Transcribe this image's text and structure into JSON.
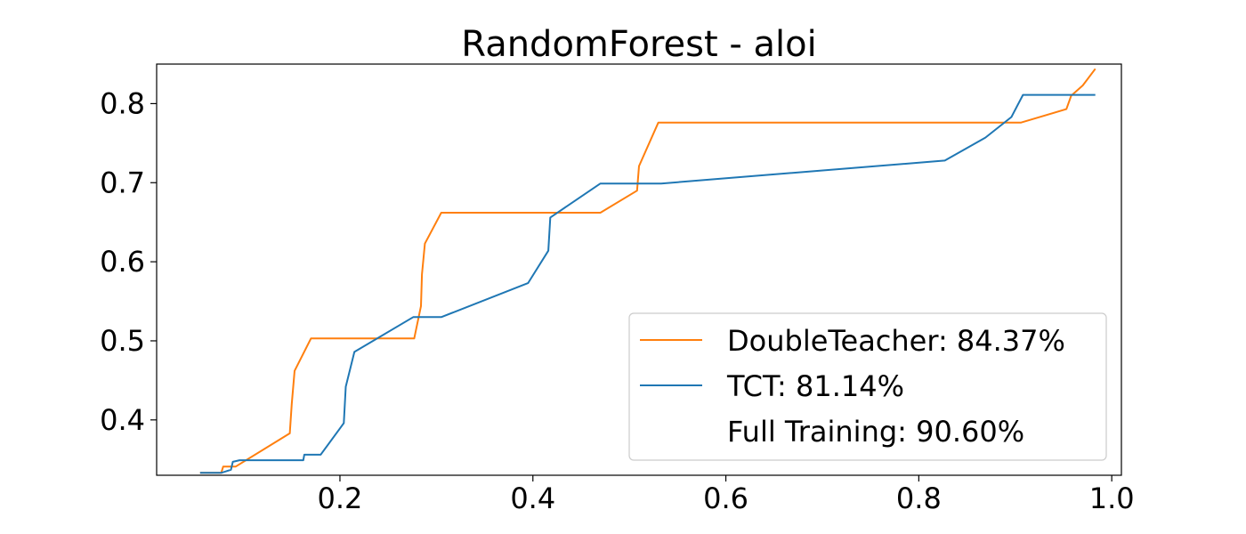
{
  "chart_data": {
    "type": "line",
    "title": "RandomForest - aloi",
    "xlabel": "",
    "ylabel": "",
    "xlim": [
      0.01,
      1.01
    ],
    "ylim": [
      0.33,
      0.85
    ],
    "x_ticks": [
      {
        "value": 0.2,
        "label": "0.2"
      },
      {
        "value": 0.4,
        "label": "0.4"
      },
      {
        "value": 0.6,
        "label": "0.6"
      },
      {
        "value": 0.8,
        "label": "0.8"
      },
      {
        "value": 1.0,
        "label": "1.0"
      }
    ],
    "y_ticks": [
      {
        "value": 0.4,
        "label": "0.4"
      },
      {
        "value": 0.5,
        "label": "0.5"
      },
      {
        "value": 0.6,
        "label": "0.6"
      },
      {
        "value": 0.7,
        "label": "0.7"
      },
      {
        "value": 0.8,
        "label": "0.8"
      }
    ],
    "grid": false,
    "legend_position": "lower-right",
    "series": [
      {
        "name": "DoubleTeacher: 84.37%",
        "color": "#ff7f0e",
        "points": [
          [
            0.055,
            0.333
          ],
          [
            0.077,
            0.333
          ],
          [
            0.079,
            0.341
          ],
          [
            0.092,
            0.341
          ],
          [
            0.148,
            0.383
          ],
          [
            0.15,
            0.42
          ],
          [
            0.153,
            0.462
          ],
          [
            0.17,
            0.503
          ],
          [
            0.277,
            0.503
          ],
          [
            0.284,
            0.544
          ],
          [
            0.285,
            0.584
          ],
          [
            0.288,
            0.623
          ],
          [
            0.305,
            0.662
          ],
          [
            0.47,
            0.662
          ],
          [
            0.508,
            0.69
          ],
          [
            0.51,
            0.721
          ],
          [
            0.53,
            0.776
          ],
          [
            0.906,
            0.776
          ],
          [
            0.953,
            0.793
          ],
          [
            0.958,
            0.81
          ],
          [
            0.97,
            0.823
          ],
          [
            0.983,
            0.844
          ]
        ]
      },
      {
        "name": "TCT: 81.14%",
        "color": "#1f77b4",
        "points": [
          [
            0.055,
            0.333
          ],
          [
            0.077,
            0.333
          ],
          [
            0.087,
            0.337
          ],
          [
            0.089,
            0.347
          ],
          [
            0.096,
            0.349
          ],
          [
            0.162,
            0.349
          ],
          [
            0.163,
            0.356
          ],
          [
            0.18,
            0.356
          ],
          [
            0.204,
            0.396
          ],
          [
            0.206,
            0.442
          ],
          [
            0.215,
            0.486
          ],
          [
            0.276,
            0.53
          ],
          [
            0.305,
            0.53
          ],
          [
            0.395,
            0.573
          ],
          [
            0.416,
            0.614
          ],
          [
            0.418,
            0.656
          ],
          [
            0.47,
            0.699
          ],
          [
            0.533,
            0.699
          ],
          [
            0.827,
            0.728
          ],
          [
            0.869,
            0.757
          ],
          [
            0.896,
            0.783
          ],
          [
            0.908,
            0.811
          ],
          [
            0.983,
            0.811
          ]
        ]
      },
      {
        "name": "Full Training: 90.60%",
        "color": "#ffffff",
        "points": []
      }
    ]
  }
}
